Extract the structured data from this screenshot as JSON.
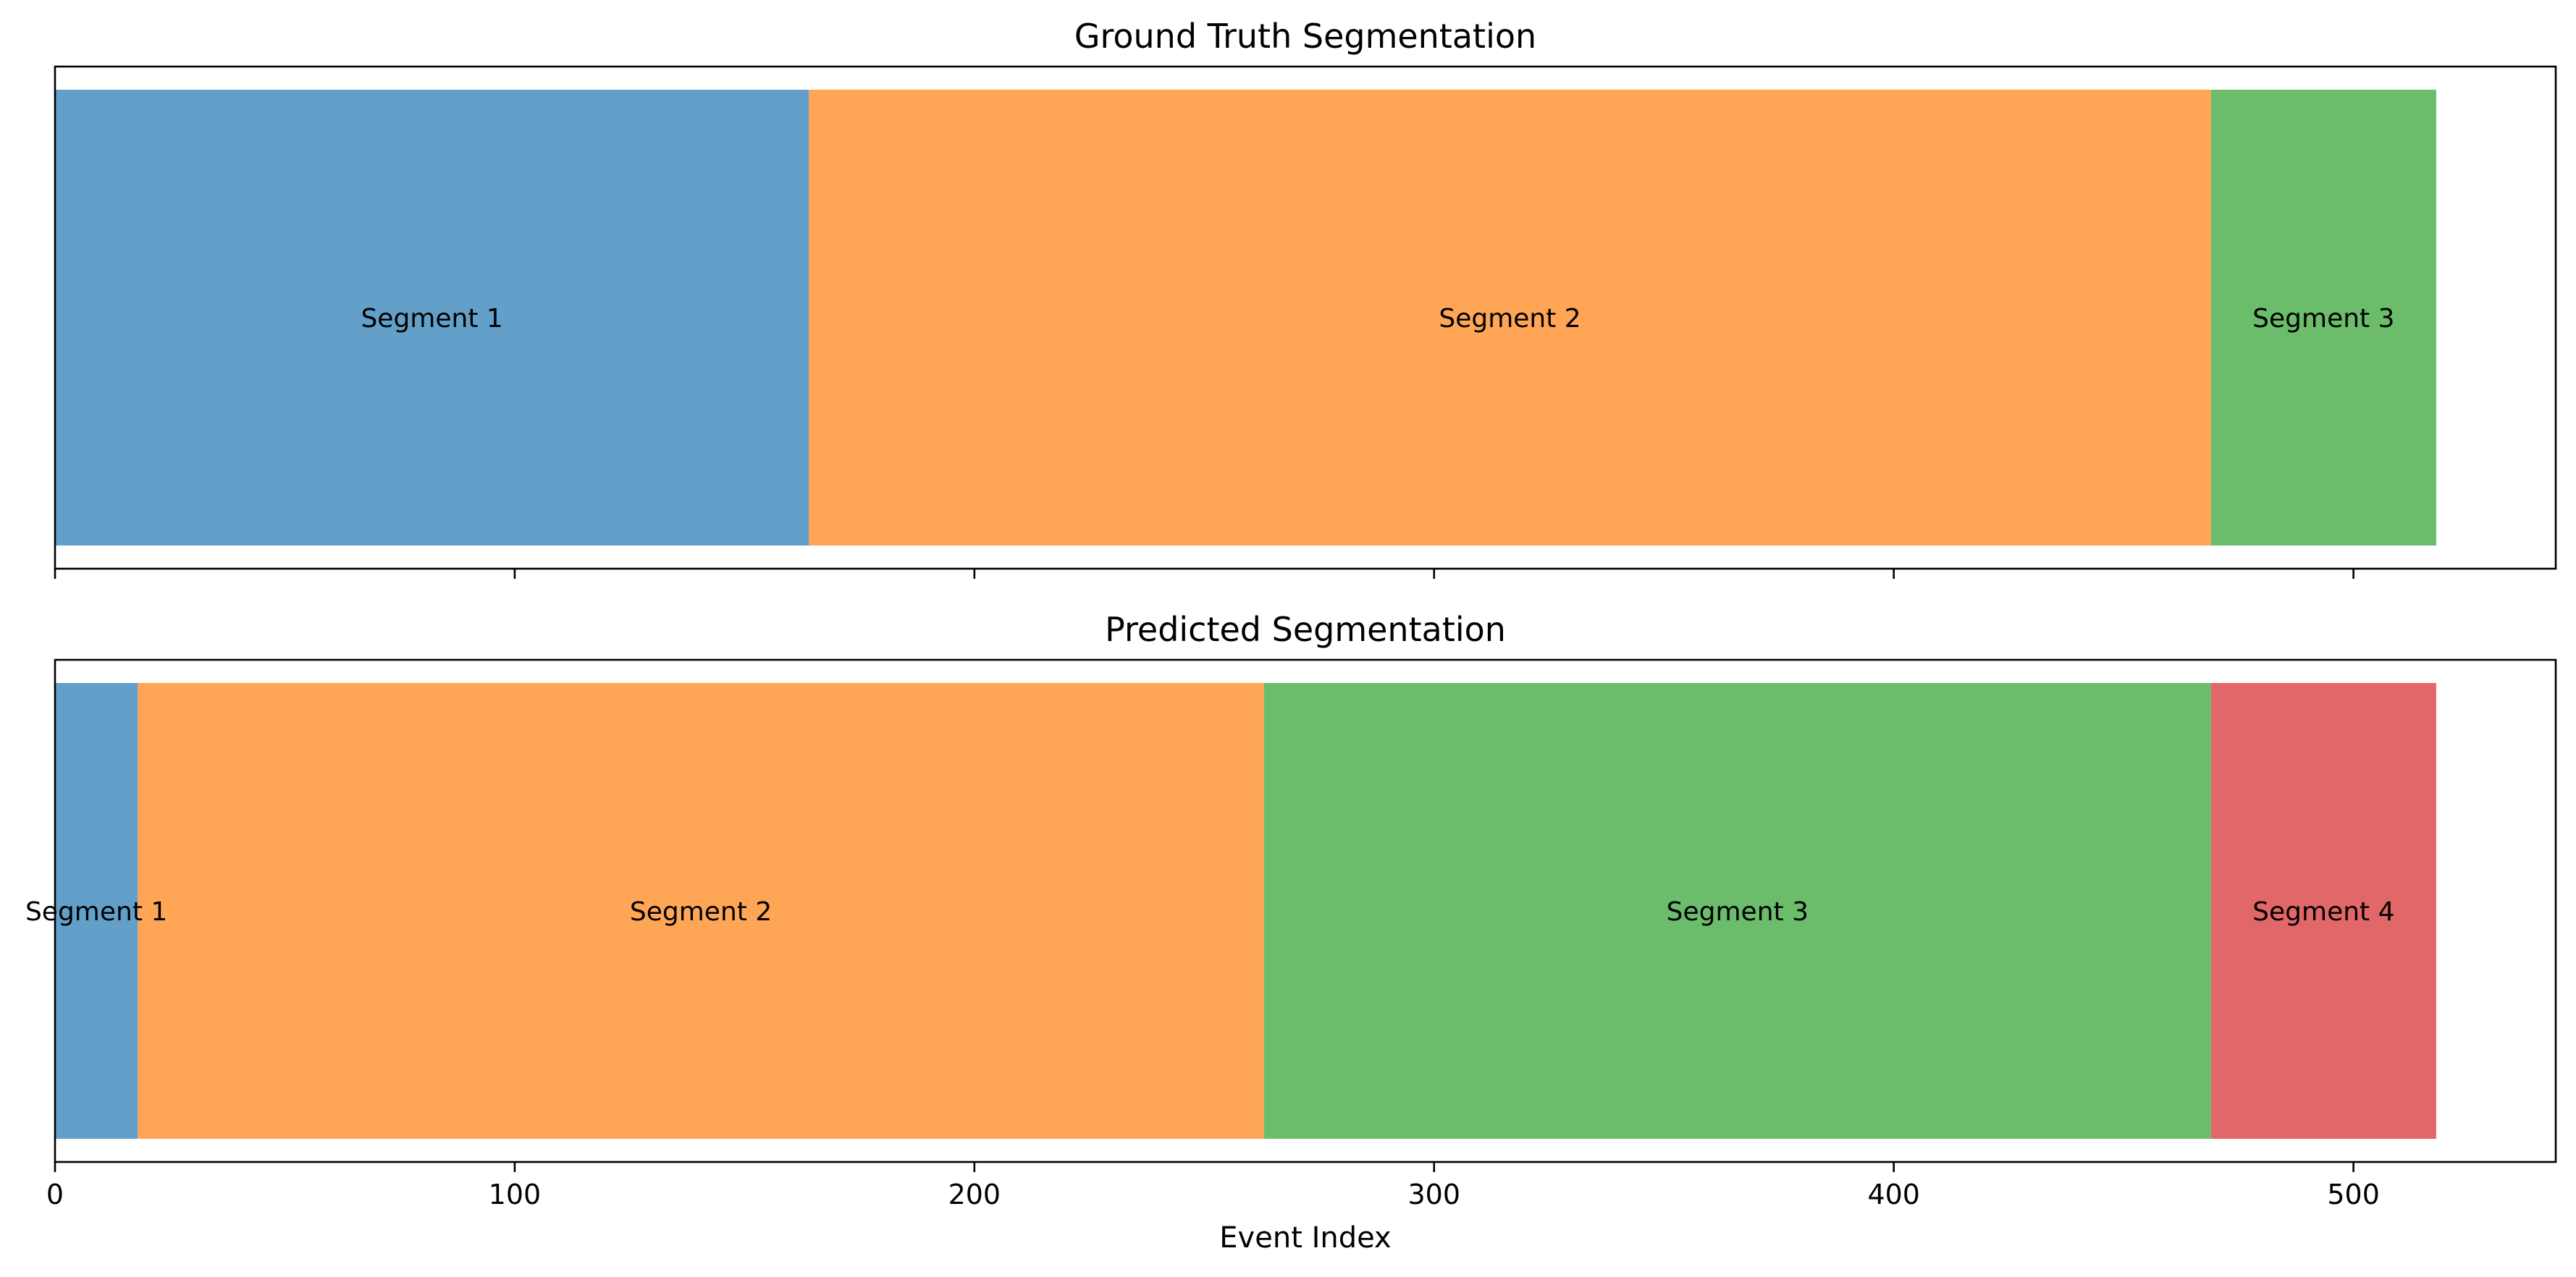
{
  "chart_data": [
    {
      "type": "bar",
      "orientation": "horizontal-stacked",
      "title": "Ground Truth Segmentation",
      "xlim": [
        0,
        544
      ],
      "x_ticks": [
        0,
        100,
        200,
        300,
        400,
        500
      ],
      "show_tick_labels": false,
      "xlabel": "",
      "segments": [
        {
          "label": "Segment 1",
          "start": 0,
          "end": 164,
          "color": "#1f77b4"
        },
        {
          "label": "Segment 2",
          "start": 164,
          "end": 469,
          "color": "#ff7f0e"
        },
        {
          "label": "Segment 3",
          "start": 469,
          "end": 518,
          "color": "#2ca02c"
        }
      ]
    },
    {
      "type": "bar",
      "orientation": "horizontal-stacked",
      "title": "Predicted Segmentation",
      "xlim": [
        0,
        544
      ],
      "x_ticks": [
        0,
        100,
        200,
        300,
        400,
        500
      ],
      "x_tick_labels": [
        "0",
        "100",
        "200",
        "300",
        "400",
        "500"
      ],
      "show_tick_labels": true,
      "xlabel": "Event Index",
      "segments": [
        {
          "label": "Segment 1",
          "start": 0,
          "end": 18,
          "color": "#1f77b4"
        },
        {
          "label": "Segment 2",
          "start": 18,
          "end": 263,
          "color": "#ff7f0e"
        },
        {
          "label": "Segment 3",
          "start": 263,
          "end": 469,
          "color": "#2ca02c"
        },
        {
          "label": "Segment 4",
          "start": 469,
          "end": 518,
          "color": "#d62728"
        }
      ]
    }
  ],
  "bar_alpha": 0.7
}
